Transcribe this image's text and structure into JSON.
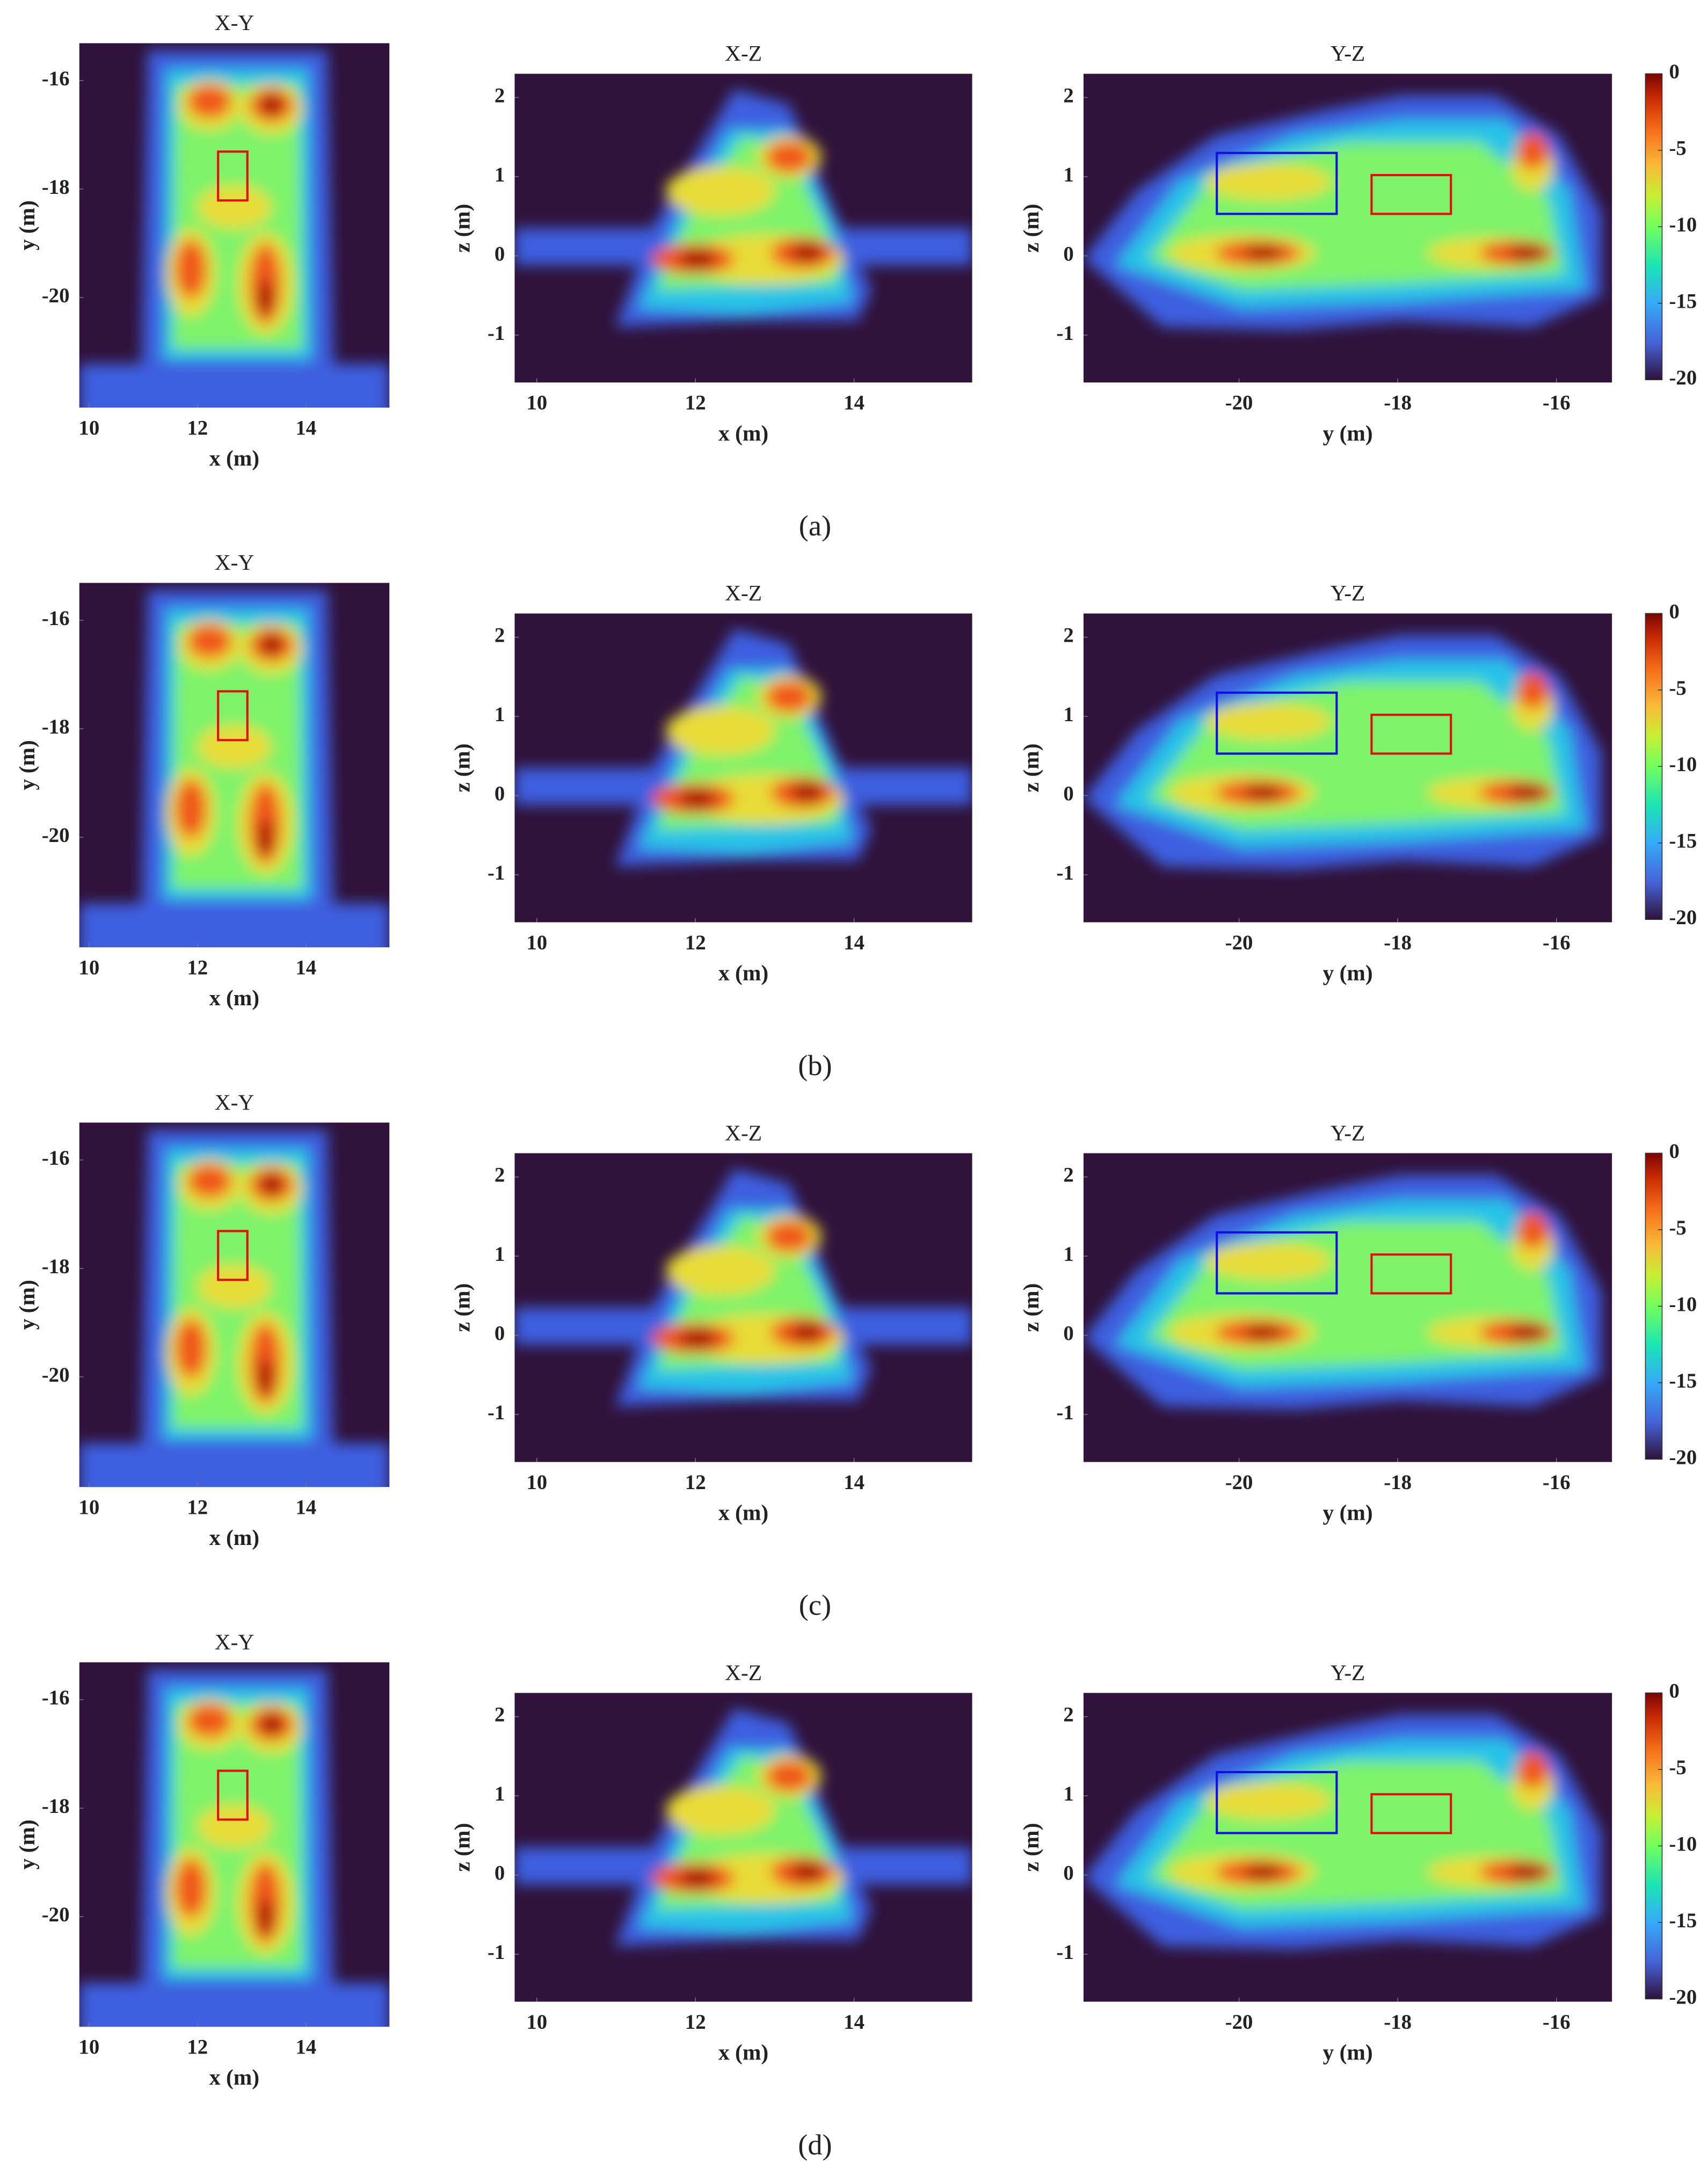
{
  "chart_data": [
    {
      "type": "heatmap",
      "title": "X-Y",
      "xlabel": "x (m)",
      "ylabel": "y (m)",
      "xlim": [
        9.82,
        15.54
      ],
      "ylim": [
        -22.03,
        -15.31
      ],
      "xticks": [
        10,
        12,
        14
      ],
      "yticks": [
        -16,
        -18,
        -20
      ],
      "boxes": [
        {
          "color": "#e01010",
          "x": [
            12.38,
            12.92
          ],
          "y": [
            -17.31,
            -18.21
          ]
        }
      ]
    },
    {
      "type": "heatmap",
      "title": "X-Z",
      "xlabel": "x (m)",
      "ylabel": "z (m)",
      "xlim": [
        9.72,
        15.49
      ],
      "ylim": [
        -1.6,
        2.3
      ],
      "xticks": [
        10,
        12,
        14
      ],
      "yticks": [
        -1,
        0,
        1,
        2
      ]
    },
    {
      "type": "heatmap",
      "title": "Y-Z",
      "xlabel": "y (m)",
      "ylabel": "z (m)",
      "xlim": [
        -21.96,
        -15.3
      ],
      "ylim": [
        -1.6,
        2.3
      ],
      "xticks": [
        -20,
        -18,
        -16
      ],
      "yticks": [
        -1,
        0,
        1,
        2
      ],
      "boxes": [
        {
          "color": "#1010e0",
          "x": [
            -20.28,
            -18.77
          ],
          "y": [
            1.3,
            0.53
          ]
        },
        {
          "color": "#e01010",
          "x": [
            -18.33,
            -17.33
          ],
          "y": [
            1.02,
            0.53
          ]
        }
      ]
    },
    {
      "type": "colorbar",
      "ylim": [
        -20,
        0
      ],
      "yticks": [
        0,
        -5,
        -10,
        -15,
        -20
      ]
    },
    {
      "type": "heatmap",
      "title": "X-Y",
      "xlabel": "x (m)",
      "ylabel": "y (m)",
      "xlim": [
        9.82,
        15.54
      ],
      "ylim": [
        -22.03,
        -15.31
      ],
      "xticks": [
        10,
        12,
        14
      ],
      "yticks": [
        -16,
        -18,
        -20
      ],
      "boxes": [
        {
          "color": "#e01010",
          "x": [
            12.38,
            12.92
          ],
          "y": [
            -17.31,
            -18.21
          ]
        }
      ]
    },
    {
      "type": "heatmap",
      "title": "X-Z",
      "xlabel": "x (m)",
      "ylabel": "z (m)",
      "xlim": [
        9.72,
        15.49
      ],
      "ylim": [
        -1.6,
        2.3
      ],
      "xticks": [
        10,
        12,
        14
      ],
      "yticks": [
        -1,
        0,
        1,
        2
      ]
    },
    {
      "type": "heatmap",
      "title": "Y-Z",
      "xlabel": "y (m)",
      "ylabel": "z (m)",
      "xlim": [
        -21.96,
        -15.3
      ],
      "ylim": [
        -1.6,
        2.3
      ],
      "xticks": [
        -20,
        -18,
        -16
      ],
      "yticks": [
        -1,
        0,
        1,
        2
      ],
      "boxes": [
        {
          "color": "#1010e0",
          "x": [
            -20.28,
            -18.77
          ],
          "y": [
            1.3,
            0.53
          ]
        },
        {
          "color": "#e01010",
          "x": [
            -18.33,
            -17.33
          ],
          "y": [
            1.02,
            0.53
          ]
        }
      ]
    },
    {
      "type": "colorbar",
      "ylim": [
        -20,
        0
      ],
      "yticks": [
        0,
        -5,
        -10,
        -15,
        -20
      ]
    },
    {
      "type": "heatmap",
      "title": "X-Y",
      "xlabel": "x (m)",
      "ylabel": "y (m)",
      "xlim": [
        9.82,
        15.54
      ],
      "ylim": [
        -22.03,
        -15.31
      ],
      "xticks": [
        10,
        12,
        14
      ],
      "yticks": [
        -16,
        -18,
        -20
      ],
      "boxes": [
        {
          "color": "#e01010",
          "x": [
            12.38,
            12.92
          ],
          "y": [
            -17.31,
            -18.21
          ]
        }
      ]
    },
    {
      "type": "heatmap",
      "title": "X-Z",
      "xlabel": "x (m)",
      "ylabel": "z (m)",
      "xlim": [
        9.72,
        15.49
      ],
      "ylim": [
        -1.6,
        2.3
      ],
      "xticks": [
        10,
        12,
        14
      ],
      "yticks": [
        -1,
        0,
        1,
        2
      ]
    },
    {
      "type": "heatmap",
      "title": "Y-Z",
      "xlabel": "y (m)",
      "ylabel": "z (m)",
      "xlim": [
        -21.96,
        -15.3
      ],
      "ylim": [
        -1.6,
        2.3
      ],
      "xticks": [
        -20,
        -18,
        -16
      ],
      "yticks": [
        -1,
        0,
        1,
        2
      ],
      "boxes": [
        {
          "color": "#1010e0",
          "x": [
            -20.28,
            -18.77
          ],
          "y": [
            1.3,
            0.53
          ]
        },
        {
          "color": "#e01010",
          "x": [
            -18.33,
            -17.33
          ],
          "y": [
            1.02,
            0.53
          ]
        }
      ]
    },
    {
      "type": "colorbar",
      "ylim": [
        -20,
        0
      ],
      "yticks": [
        0,
        -5,
        -10,
        -15,
        -20
      ]
    },
    {
      "type": "heatmap",
      "title": "X-Y",
      "xlabel": "x (m)",
      "ylabel": "y (m)",
      "xlim": [
        9.82,
        15.54
      ],
      "ylim": [
        -22.03,
        -15.31
      ],
      "xticks": [
        10,
        12,
        14
      ],
      "yticks": [
        -16,
        -18,
        -20
      ],
      "boxes": [
        {
          "color": "#e01010",
          "x": [
            12.38,
            12.92
          ],
          "y": [
            -17.31,
            -18.21
          ]
        }
      ]
    },
    {
      "type": "heatmap",
      "title": "X-Z",
      "xlabel": "x (m)",
      "ylabel": "z (m)",
      "xlim": [
        9.72,
        15.49
      ],
      "ylim": [
        -1.6,
        2.3
      ],
      "xticks": [
        10,
        12,
        14
      ],
      "yticks": [
        -1,
        0,
        1,
        2
      ]
    },
    {
      "type": "heatmap",
      "title": "Y-Z",
      "xlabel": "y (m)",
      "ylabel": "z (m)",
      "xlim": [
        -21.96,
        -15.3
      ],
      "ylim": [
        -1.6,
        2.3
      ],
      "xticks": [
        -20,
        -18,
        -16
      ],
      "yticks": [
        -1,
        0,
        1,
        2
      ],
      "boxes": [
        {
          "color": "#1010e0",
          "x": [
            -20.28,
            -18.77
          ],
          "y": [
            1.3,
            0.53
          ]
        },
        {
          "color": "#e01010",
          "x": [
            -18.33,
            -17.33
          ],
          "y": [
            1.02,
            0.53
          ]
        }
      ]
    },
    {
      "type": "colorbar",
      "ylim": [
        -20,
        0
      ],
      "yticks": [
        0,
        -5,
        -10,
        -15,
        -20
      ]
    }
  ],
  "captions": [
    "(a)",
    "(b)",
    "(c)",
    "(d)"
  ]
}
